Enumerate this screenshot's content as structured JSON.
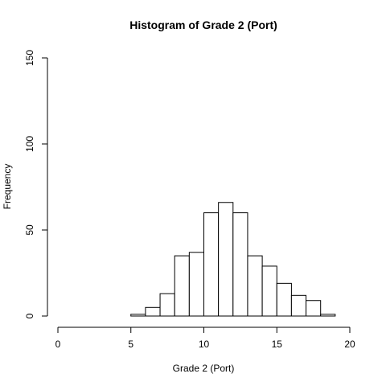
{
  "chart_data": {
    "type": "bar",
    "title": "Histogram of Grade 2 (Port)",
    "xlabel": "Grade 2 (Port)",
    "ylabel": "Frequency",
    "xlim": [
      0,
      20
    ],
    "ylim": [
      0,
      150
    ],
    "x_ticks": [
      0,
      5,
      10,
      15,
      20
    ],
    "y_ticks": [
      0,
      50,
      100,
      150
    ],
    "bins": [
      {
        "start": 5,
        "end": 6,
        "count": 1
      },
      {
        "start": 6,
        "end": 7,
        "count": 5
      },
      {
        "start": 7,
        "end": 8,
        "count": 13
      },
      {
        "start": 8,
        "end": 9,
        "count": 35
      },
      {
        "start": 9,
        "end": 10,
        "count": 37
      },
      {
        "start": 10,
        "end": 11,
        "count": 60
      },
      {
        "start": 11,
        "end": 12,
        "count": 66
      },
      {
        "start": 12,
        "end": 13,
        "count": 60
      },
      {
        "start": 13,
        "end": 14,
        "count": 35
      },
      {
        "start": 14,
        "end": 15,
        "count": 29
      },
      {
        "start": 15,
        "end": 16,
        "count": 19
      },
      {
        "start": 16,
        "end": 17,
        "count": 12
      },
      {
        "start": 17,
        "end": 18,
        "count": 9
      },
      {
        "start": 18,
        "end": 19,
        "count": 1
      }
    ],
    "grid": false,
    "bar_fill": "#ffffff",
    "bar_stroke": "#000000"
  }
}
